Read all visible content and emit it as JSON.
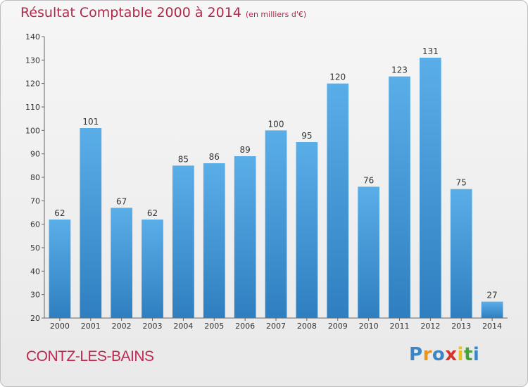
{
  "header": {
    "title": "Résultat Comptable 2000 à 2014",
    "unit_note": "(en milliers d'€)"
  },
  "footer": {
    "town": "CONTZ-LES-BAINS",
    "brand_letters": [
      "P",
      "r",
      "o",
      "x",
      "i",
      "t",
      "i"
    ],
    "brand_colors": [
      "#3b86c6",
      "#e8941f",
      "#3b86c6",
      "#d8322a",
      "#e8c21f",
      "#4aa03b",
      "#3b86c6"
    ]
  },
  "colors": {
    "bar_light": "#5aaee8",
    "bar_dark": "#2f7fc0",
    "title": "#b0294b"
  },
  "chart_data": {
    "type": "bar",
    "title": "Résultat Comptable 2000 à 2014",
    "subtitle": "(en milliers d'€)",
    "xlabel": "",
    "ylabel": "",
    "ylim": [
      20,
      140
    ],
    "yticks": [
      20,
      30,
      40,
      50,
      60,
      70,
      80,
      90,
      100,
      110,
      120,
      130,
      140
    ],
    "grid": false,
    "categories": [
      "2000",
      "2001",
      "2002",
      "2003",
      "2004",
      "2005",
      "2006",
      "2007",
      "2008",
      "2009",
      "2010",
      "2011",
      "2012",
      "2013",
      "2014"
    ],
    "values": [
      62,
      101,
      67,
      62,
      85,
      86,
      89,
      100,
      95,
      120,
      76,
      123,
      131,
      75,
      27
    ]
  }
}
